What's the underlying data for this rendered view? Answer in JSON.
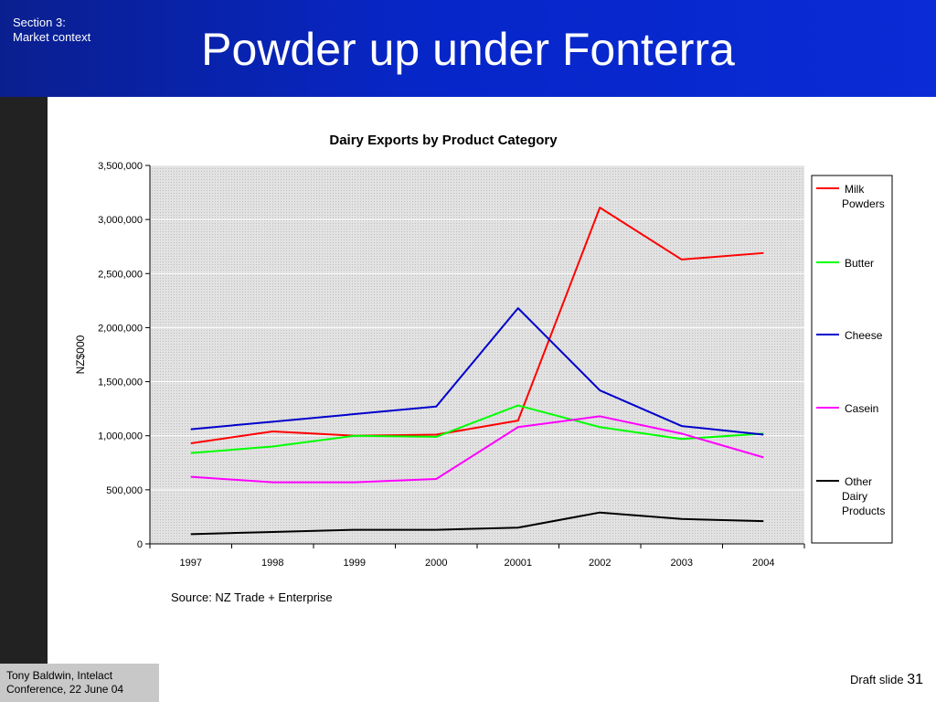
{
  "slide": {
    "section": "Section 3:\nMarket context",
    "title": "Powder up under Fonterra",
    "footer_author": "Tony Baldwin, Intelact\nConference, 22 June 04",
    "footer_draft": "Draft slide",
    "page_number": "31",
    "source": "Source: NZ Trade + Enterprise"
  },
  "chart_data": {
    "type": "line",
    "title": "Dairy Exports by Product Category",
    "xlabel": "",
    "ylabel": "NZ$000",
    "categories": [
      "1997",
      "1998",
      "1999",
      "2000",
      "20001",
      "2002",
      "2003",
      "2004"
    ],
    "ylim": [
      0,
      3500000
    ],
    "yticks": [
      0,
      500000,
      1000000,
      1500000,
      2000000,
      2500000,
      3000000,
      3500000
    ],
    "ytick_labels": [
      "0",
      "500,000",
      "1,000,000",
      "1,500,000",
      "2,000,000",
      "2,500,000",
      "3,000,000",
      "3,500,000"
    ],
    "grid": true,
    "legend_position": "right",
    "series": [
      {
        "name": "Milk Powders",
        "color": "#ff0000",
        "values": [
          930000,
          1040000,
          1000000,
          1010000,
          1140000,
          3110000,
          2630000,
          2690000
        ]
      },
      {
        "name": "Butter",
        "color": "#00ff00",
        "values": [
          840000,
          900000,
          1000000,
          990000,
          1280000,
          1080000,
          970000,
          1020000
        ]
      },
      {
        "name": "Cheese",
        "color": "#0000cc",
        "values": [
          1060000,
          1130000,
          1200000,
          1270000,
          2180000,
          1420000,
          1090000,
          1010000
        ]
      },
      {
        "name": "Casein",
        "color": "#ff00ff",
        "values": [
          620000,
          570000,
          570000,
          600000,
          1080000,
          1180000,
          1020000,
          800000
        ]
      },
      {
        "name": "Other Dairy Products",
        "color": "#000000",
        "values": [
          90000,
          110000,
          130000,
          130000,
          150000,
          290000,
          230000,
          210000
        ]
      }
    ],
    "legend_lines": [
      [
        "Milk",
        "Powders"
      ],
      [
        "Butter"
      ],
      [
        "Cheese"
      ],
      [
        "Casein"
      ],
      [
        "Other",
        "Dairy",
        "Products"
      ]
    ]
  }
}
